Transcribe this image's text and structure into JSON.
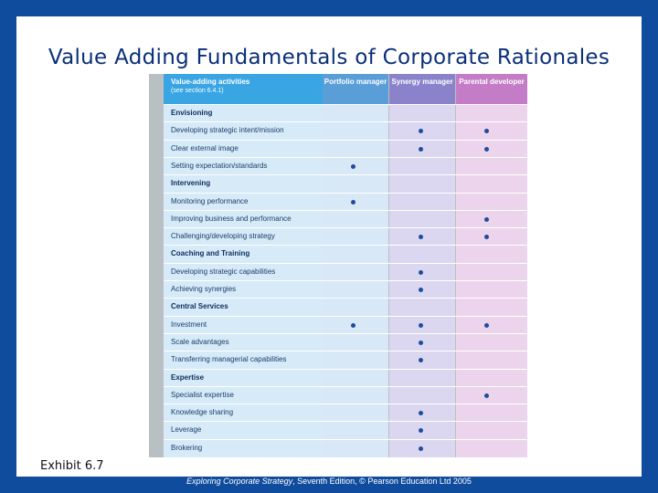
{
  "slide": {
    "title": "Value Adding Fundamentals of Corporate Rationales",
    "exhibit": "Exhibit 6.7",
    "footer_book": "Exploring Corporate Strategy",
    "footer_rest": ", Seventh Edition, © Pearson Education Ltd 2005"
  },
  "table": {
    "headers": {
      "activity": "Value-adding activities",
      "activity_sub": "(see section 6.4.1)",
      "pm": "Portfolio manager",
      "sm": "Synergy manager",
      "pd": "Parental developer"
    },
    "rows": [
      {
        "label": "Envisioning",
        "section": true,
        "pm": false,
        "sm": false,
        "pd": false
      },
      {
        "label": "Developing strategic intent/mission",
        "section": false,
        "pm": false,
        "sm": true,
        "pd": true
      },
      {
        "label": "Clear external image",
        "section": false,
        "pm": false,
        "sm": true,
        "pd": true
      },
      {
        "label": "Setting expectation/standards",
        "section": false,
        "pm": true,
        "sm": false,
        "pd": false
      },
      {
        "label": "Intervening",
        "section": true,
        "pm": false,
        "sm": false,
        "pd": false
      },
      {
        "label": "Monitoring performance",
        "section": false,
        "pm": true,
        "sm": false,
        "pd": false
      },
      {
        "label": "Improving business and performance",
        "section": false,
        "pm": false,
        "sm": false,
        "pd": true
      },
      {
        "label": "Challenging/developing strategy",
        "section": false,
        "pm": false,
        "sm": true,
        "pd": true
      },
      {
        "label": "Coaching and Training",
        "section": true,
        "pm": false,
        "sm": false,
        "pd": false
      },
      {
        "label": "Developing strategic capabilities",
        "section": false,
        "pm": false,
        "sm": true,
        "pd": false
      },
      {
        "label": "Achieving synergies",
        "section": false,
        "pm": false,
        "sm": true,
        "pd": false
      },
      {
        "label": "Central Services",
        "section": true,
        "pm": false,
        "sm": false,
        "pd": false
      },
      {
        "label": "Investment",
        "section": false,
        "pm": true,
        "sm": true,
        "pd": true
      },
      {
        "label": "Scale advantages",
        "section": false,
        "pm": false,
        "sm": true,
        "pd": false
      },
      {
        "label": "Transferring managerial capabilities",
        "section": false,
        "pm": false,
        "sm": true,
        "pd": false
      },
      {
        "label": "Expertise",
        "section": true,
        "pm": false,
        "sm": false,
        "pd": false
      },
      {
        "label": "Specialist expertise",
        "section": false,
        "pm": false,
        "sm": false,
        "pd": true
      },
      {
        "label": "Knowledge sharing",
        "section": false,
        "pm": false,
        "sm": true,
        "pd": false
      },
      {
        "label": "Leverage",
        "section": false,
        "pm": false,
        "sm": true,
        "pd": false
      },
      {
        "label": "Brokering",
        "section": false,
        "pm": false,
        "sm": true,
        "pd": false
      }
    ]
  }
}
